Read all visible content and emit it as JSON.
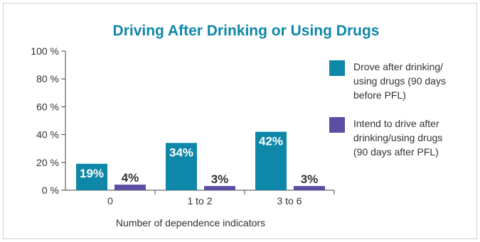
{
  "chart_data": {
    "type": "bar",
    "title": "Driving After Drinking or Using Drugs",
    "xlabel": "Number of dependence indicators",
    "ylabel": "",
    "categories": [
      "0",
      "1 to 2",
      "3 to 6"
    ],
    "y_ticks": [
      "0 %",
      "20 %",
      "40 %",
      "60 %",
      "80 %",
      "100 %"
    ],
    "ylim": [
      0,
      100
    ],
    "grid": false,
    "legend_position": "right",
    "series": [
      {
        "name": "Drove after drinking/ using drugs (90 days before PFL)",
        "legend_lines": [
          "Drove after drinking/",
          "using drugs (90 days",
          "before PFL)"
        ],
        "values": [
          19,
          34,
          42
        ],
        "value_labels": [
          "19%",
          "34%",
          "42%"
        ],
        "color": "#0f87a9"
      },
      {
        "name": "Intend to drive after drinking/using drugs (90 days after PFL)",
        "legend_lines": [
          "Intend to drive after",
          "drinking/using drugs",
          "(90 days after PFL)"
        ],
        "values": [
          4,
          3,
          3
        ],
        "value_labels": [
          "4%",
          "3%",
          "3%"
        ],
        "color": "#5a4fa3"
      }
    ]
  }
}
